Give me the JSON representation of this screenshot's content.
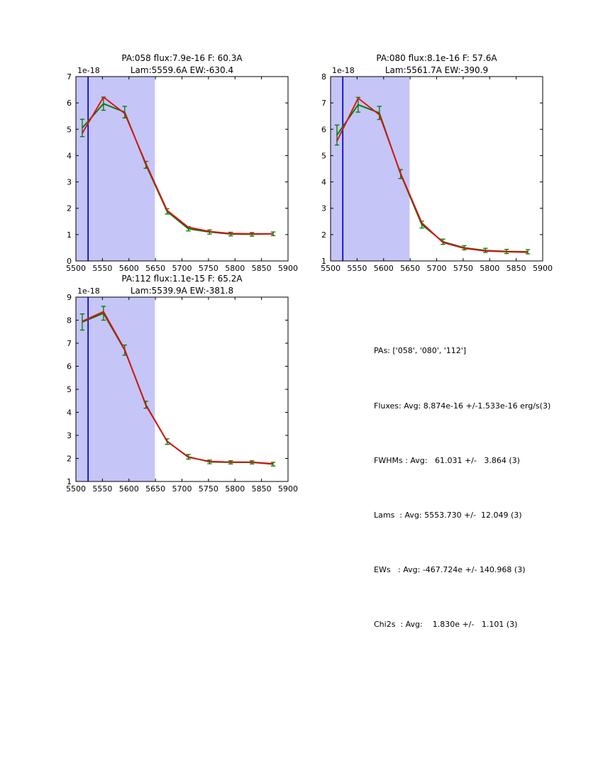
{
  "figure": {
    "colors": {
      "data_line": "#007800",
      "fit_line": "#dd1111",
      "shade": "#c5c5f7",
      "vline": "#0000cc",
      "frame": "#000000",
      "background": "#ffffff"
    }
  },
  "chart_data": [
    {
      "type": "line",
      "title_line1": "PA:058 flux:7.9e-16 F: 60.3A",
      "title_line2": "Lam:5559.6A EW:-630.4",
      "y_offset_label": "1e-18",
      "xlim": [
        5500,
        5900
      ],
      "ylim": [
        0,
        7
      ],
      "xticks": [
        5500,
        5550,
        5600,
        5650,
        5700,
        5750,
        5800,
        5850,
        5900
      ],
      "yticks": [
        0,
        1,
        2,
        3,
        4,
        5,
        6,
        7
      ],
      "shade_region": [
        5500,
        5649
      ],
      "vline_x": 5523,
      "x": [
        5512,
        5552,
        5592,
        5632,
        5672,
        5712,
        5752,
        5792,
        5832,
        5872
      ],
      "series": [
        {
          "name": "data",
          "color_key": "data_line",
          "values": [
            5.05,
            5.97,
            5.65,
            3.65,
            1.88,
            1.22,
            1.1,
            1.02,
            1.01,
            1.03
          ],
          "errors": [
            0.33,
            0.25,
            0.22,
            0.13,
            0.1,
            0.08,
            0.08,
            0.07,
            0.07,
            0.07
          ]
        },
        {
          "name": "fit",
          "color_key": "fit_line",
          "values": [
            4.85,
            6.22,
            5.6,
            3.7,
            1.92,
            1.28,
            1.12,
            1.04,
            1.03,
            1.03
          ]
        }
      ],
      "grid": false,
      "legend": "none"
    },
    {
      "type": "line",
      "title_line1": "PA:080 flux:8.1e-16 F: 57.6A",
      "title_line2": "Lam:5561.7A EW:-390.9",
      "y_offset_label": "1e-18",
      "xlim": [
        5500,
        5900
      ],
      "ylim": [
        1,
        8
      ],
      "xticks": [
        5500,
        5550,
        5600,
        5650,
        5700,
        5750,
        5800,
        5850,
        5900
      ],
      "yticks": [
        1,
        2,
        3,
        4,
        5,
        6,
        7,
        8
      ],
      "shade_region": [
        5500,
        5649
      ],
      "vline_x": 5523,
      "x": [
        5512,
        5552,
        5592,
        5632,
        5672,
        5712,
        5752,
        5792,
        5832,
        5872
      ],
      "series": [
        {
          "name": "data",
          "color_key": "data_line",
          "values": [
            5.78,
            6.93,
            6.62,
            4.3,
            2.38,
            1.73,
            1.5,
            1.4,
            1.36,
            1.35
          ],
          "errors": [
            0.38,
            0.28,
            0.25,
            0.17,
            0.13,
            0.1,
            0.08,
            0.08,
            0.08,
            0.08
          ]
        },
        {
          "name": "fit",
          "color_key": "fit_line",
          "values": [
            5.55,
            7.18,
            6.55,
            4.33,
            2.45,
            1.7,
            1.48,
            1.38,
            1.35,
            1.33
          ]
        }
      ],
      "grid": false,
      "legend": "none"
    },
    {
      "type": "line",
      "title_line1": "PA:112 flux:1.1e-15 F: 65.2A",
      "title_line2": "Lam:5539.9A EW:-381.8",
      "y_offset_label": "1e-18",
      "xlim": [
        5500,
        5900
      ],
      "ylim": [
        1,
        9
      ],
      "xticks": [
        5500,
        5550,
        5600,
        5650,
        5700,
        5750,
        5800,
        5850,
        5900
      ],
      "yticks": [
        1,
        2,
        3,
        4,
        5,
        6,
        7,
        8,
        9
      ],
      "shade_region": [
        5500,
        5649
      ],
      "vline_x": 5523,
      "x": [
        5512,
        5552,
        5592,
        5632,
        5672,
        5712,
        5752,
        5792,
        5832,
        5872
      ],
      "series": [
        {
          "name": "data",
          "color_key": "data_line",
          "values": [
            7.92,
            8.3,
            6.7,
            4.33,
            2.73,
            2.07,
            1.85,
            1.83,
            1.83,
            1.75
          ],
          "errors": [
            0.35,
            0.3,
            0.22,
            0.15,
            0.12,
            0.1,
            0.08,
            0.07,
            0.07,
            0.08
          ]
        },
        {
          "name": "fit",
          "color_key": "fit_line",
          "values": [
            7.95,
            8.37,
            6.73,
            4.3,
            2.75,
            2.05,
            1.87,
            1.84,
            1.84,
            1.77
          ]
        }
      ],
      "grid": false,
      "legend": "none"
    }
  ],
  "stats": {
    "lines": [
      "PAs: ['058', '080', '112']",
      "Fluxes: Avg: 8.874e-16 +/-1.533e-16 erg/s(3)",
      "FWHMs : Avg:   61.031 +/-   3.864 (3)",
      "Lams  : Avg: 5553.730 +/-  12.049 (3)",
      "EWs   : Avg: -467.724e +/- 140.968 (3)",
      "Chi2s  : Avg:    1.830e +/-   1.101 (3)"
    ]
  }
}
